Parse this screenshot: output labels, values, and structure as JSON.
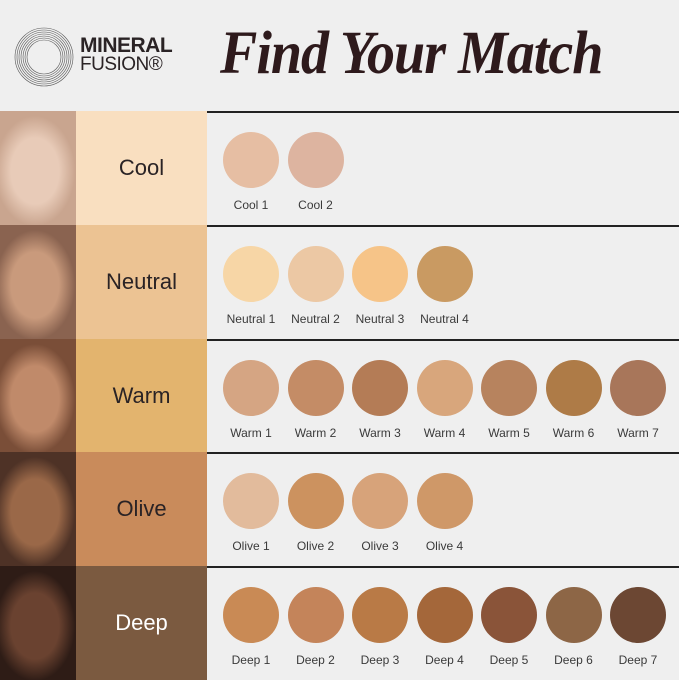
{
  "brand": {
    "line1": "MINERAL",
    "line2": "FUSION®"
  },
  "title": "Find Your Match",
  "rows": [
    {
      "label": "Cool",
      "bg": "#f9dfc0",
      "text": "#2a2325",
      "face": [
        "#e8cbb8",
        "#c9a58f"
      ],
      "swatches": [
        {
          "name": "Cool 1",
          "color": "#e6bea3"
        },
        {
          "name": "Cool 2",
          "color": "#ddb4a0"
        }
      ]
    },
    {
      "label": "Neutral",
      "bg": "#ecc393",
      "text": "#2a2325",
      "face": [
        "#c99a7c",
        "#8a6350"
      ],
      "swatches": [
        {
          "name": "Neutral 1",
          "color": "#f7d6a6"
        },
        {
          "name": "Neutral 2",
          "color": "#ecc8a4"
        },
        {
          "name": "Neutral 3",
          "color": "#f6c488"
        },
        {
          "name": "Neutral 4",
          "color": "#c99a62"
        }
      ]
    },
    {
      "label": "Warm",
      "bg": "#e3b46e",
      "text": "#2a2325",
      "face": [
        "#c08a6a",
        "#7a4e38"
      ],
      "swatches": [
        {
          "name": "Warm 1",
          "color": "#d5a583"
        },
        {
          "name": "Warm 2",
          "color": "#c48c66"
        },
        {
          "name": "Warm 3",
          "color": "#b47c56"
        },
        {
          "name": "Warm 4",
          "color": "#d8a67c"
        },
        {
          "name": "Warm 5",
          "color": "#b7835e"
        },
        {
          "name": "Warm 6",
          "color": "#ae7b47"
        },
        {
          "name": "Warm 7",
          "color": "#a8765a"
        }
      ]
    },
    {
      "label": "Olive",
      "bg": "#c98b5b",
      "text": "#2a2325",
      "face": [
        "#9a6848",
        "#4e3226"
      ],
      "swatches": [
        {
          "name": "Olive 1",
          "color": "#e2bb9c"
        },
        {
          "name": "Olive 2",
          "color": "#cc925f"
        },
        {
          "name": "Olive 3",
          "color": "#d7a37a"
        },
        {
          "name": "Olive 4",
          "color": "#cf9868"
        }
      ]
    },
    {
      "label": "Deep",
      "bg": "#7b5a40",
      "text": "#ffffff",
      "face": [
        "#6a4230",
        "#2e1c16"
      ],
      "swatches": [
        {
          "name": "Deep 1",
          "color": "#c98a55"
        },
        {
          "name": "Deep 2",
          "color": "#c4845a"
        },
        {
          "name": "Deep 3",
          "color": "#b97a46"
        },
        {
          "name": "Deep 4",
          "color": "#a4673a"
        },
        {
          "name": "Deep 5",
          "color": "#8a5439"
        },
        {
          "name": "Deep 6",
          "color": "#8d6646"
        },
        {
          "name": "Deep 7",
          "color": "#6c4733"
        }
      ]
    }
  ]
}
